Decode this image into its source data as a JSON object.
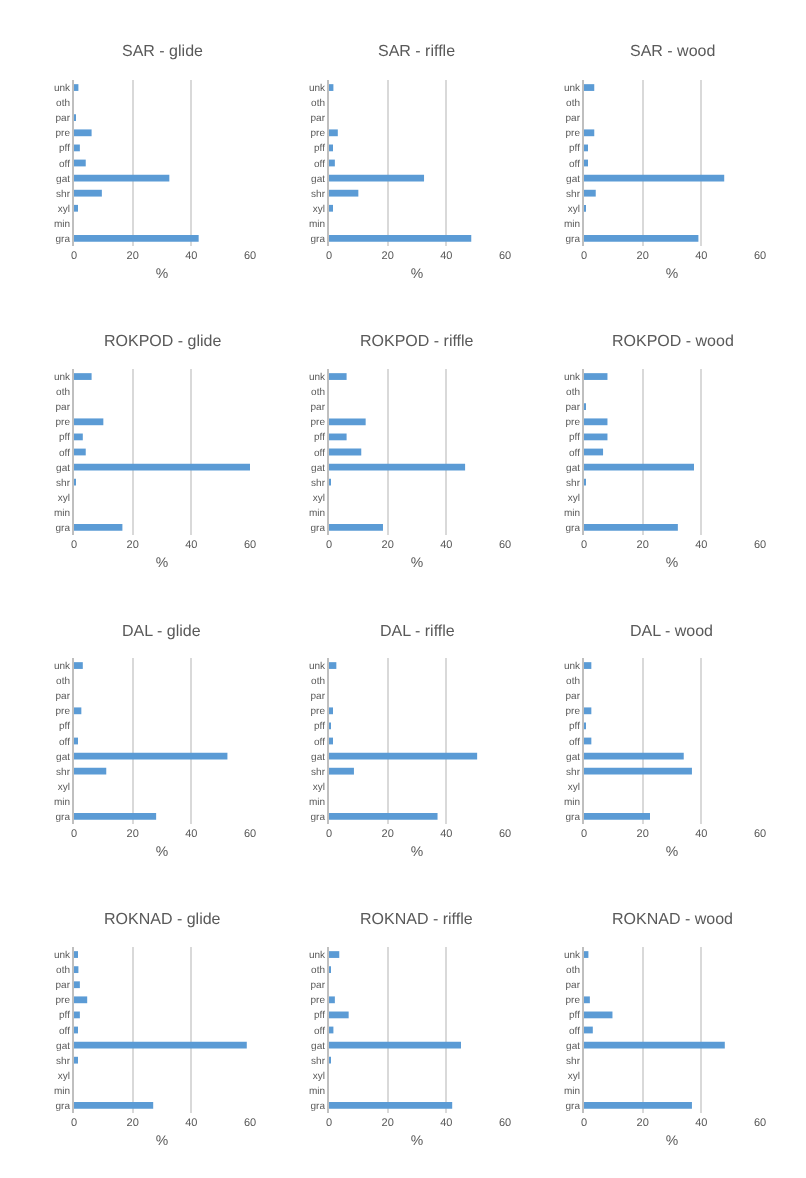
{
  "chart_data": [
    {
      "type": "bar",
      "orientation": "horizontal",
      "title": "SAR - glide",
      "xlabel": "%",
      "categories": [
        "unk",
        "oth",
        "par",
        "pre",
        "pff",
        "off",
        "gat",
        "shr",
        "xyl",
        "min",
        "gra"
      ],
      "values": [
        1.5,
        0,
        0.3,
        6,
        2,
        4,
        32.5,
        9.5,
        1,
        0,
        42.5
      ],
      "color": "#5b9bd5",
      "xlim": [
        0,
        60
      ],
      "xticks": [
        0,
        20,
        40,
        60
      ],
      "grid": "x"
    },
    {
      "type": "bar",
      "orientation": "horizontal",
      "title": "SAR - riffle",
      "xlabel": "%",
      "categories": [
        "unk",
        "oth",
        "par",
        "pre",
        "pff",
        "off",
        "gat",
        "shr",
        "xyl",
        "min",
        "gra"
      ],
      "values": [
        1.5,
        0,
        0,
        3,
        1,
        2,
        32.4,
        10,
        1,
        0,
        48.5
      ],
      "color": "#5b9bd5",
      "xlim": [
        0,
        60
      ],
      "xticks": [
        0,
        20,
        40,
        60
      ],
      "grid": "x"
    },
    {
      "type": "bar",
      "orientation": "horizontal",
      "title": "SAR - wood",
      "xlabel": "%",
      "categories": [
        "unk",
        "oth",
        "par",
        "pre",
        "pff",
        "off",
        "gat",
        "shr",
        "xyl",
        "min",
        "gra"
      ],
      "values": [
        3.5,
        0,
        0,
        3.5,
        1,
        1,
        47.8,
        4,
        0.5,
        0,
        39
      ],
      "color": "#5b9bd5",
      "xlim": [
        0,
        60
      ],
      "xticks": [
        0,
        20,
        40,
        60
      ],
      "grid": "x"
    },
    {
      "type": "bar",
      "orientation": "horizontal",
      "title": "ROKPOD - glide",
      "xlabel": "%",
      "categories": [
        "unk",
        "oth",
        "par",
        "pre",
        "pff",
        "off",
        "gat",
        "shr",
        "xyl",
        "min",
        "gra"
      ],
      "values": [
        6,
        0,
        0,
        10,
        3,
        4,
        60,
        0.3,
        0,
        0,
        16.5
      ],
      "color": "#5b9bd5",
      "xlim": [
        0,
        60
      ],
      "xticks": [
        0,
        20,
        40,
        60
      ],
      "grid": "x"
    },
    {
      "type": "bar",
      "orientation": "horizontal",
      "title": "ROKPOD - riffle",
      "xlabel": "%",
      "categories": [
        "unk",
        "oth",
        "par",
        "pre",
        "pff",
        "off",
        "gat",
        "shr",
        "xyl",
        "min",
        "gra"
      ],
      "values": [
        6,
        0,
        0,
        12.5,
        6,
        11,
        46.4,
        0.5,
        0,
        0,
        18.4
      ],
      "color": "#5b9bd5",
      "xlim": [
        0,
        60
      ],
      "xticks": [
        0,
        20,
        40,
        60
      ],
      "grid": "x"
    },
    {
      "type": "bar",
      "orientation": "horizontal",
      "title": "ROKPOD - wood",
      "xlabel": "%",
      "categories": [
        "unk",
        "oth",
        "par",
        "pre",
        "pff",
        "off",
        "gat",
        "shr",
        "xyl",
        "min",
        "gra"
      ],
      "values": [
        8,
        0,
        0.3,
        8,
        8,
        6.5,
        37.5,
        0.5,
        0,
        0,
        32
      ],
      "color": "#5b9bd5",
      "xlim": [
        0,
        60
      ],
      "xticks": [
        0,
        20,
        40,
        60
      ],
      "grid": "x"
    },
    {
      "type": "bar",
      "orientation": "horizontal",
      "title": "DAL - glide",
      "xlabel": "%",
      "categories": [
        "unk",
        "oth",
        "par",
        "pre",
        "pff",
        "off",
        "gat",
        "shr",
        "xyl",
        "min",
        "gra"
      ],
      "values": [
        3,
        0,
        0,
        2.5,
        0,
        1,
        52.3,
        11,
        0,
        0,
        28
      ],
      "color": "#5b9bd5",
      "xlim": [
        0,
        60
      ],
      "xticks": [
        0,
        20,
        40,
        60
      ],
      "grid": "x"
    },
    {
      "type": "bar",
      "orientation": "horizontal",
      "title": "DAL - riffle",
      "xlabel": "%",
      "categories": [
        "unk",
        "oth",
        "par",
        "pre",
        "pff",
        "off",
        "gat",
        "shr",
        "xyl",
        "min",
        "gra"
      ],
      "values": [
        2.5,
        0,
        0,
        1,
        0.5,
        1,
        50.5,
        8.5,
        0,
        0,
        37
      ],
      "color": "#5b9bd5",
      "xlim": [
        0,
        60
      ],
      "xticks": [
        0,
        20,
        40,
        60
      ],
      "grid": "x"
    },
    {
      "type": "bar",
      "orientation": "horizontal",
      "title": "DAL - wood",
      "xlabel": "%",
      "categories": [
        "unk",
        "oth",
        "par",
        "pre",
        "pff",
        "off",
        "gat",
        "shr",
        "xyl",
        "min",
        "gra"
      ],
      "values": [
        2.5,
        0,
        0,
        2.5,
        0.5,
        2.5,
        34,
        36.8,
        0,
        0,
        22.5
      ],
      "color": "#5b9bd5",
      "xlim": [
        0,
        60
      ],
      "xticks": [
        0,
        20,
        40,
        60
      ],
      "grid": "x"
    },
    {
      "type": "bar",
      "orientation": "horizontal",
      "title": "ROKNAD - glide",
      "xlabel": "%",
      "categories": [
        "unk",
        "oth",
        "par",
        "pre",
        "pff",
        "off",
        "gat",
        "shr",
        "xyl",
        "min",
        "gra"
      ],
      "values": [
        1,
        1.5,
        2,
        4.5,
        2,
        1,
        58.9,
        1,
        0,
        0,
        27
      ],
      "color": "#5b9bd5",
      "xlim": [
        0,
        60
      ],
      "xticks": [
        0,
        20,
        40,
        60
      ],
      "grid": "x"
    },
    {
      "type": "bar",
      "orientation": "horizontal",
      "title": "ROKNAD - riffle",
      "xlabel": "%",
      "categories": [
        "unk",
        "oth",
        "par",
        "pre",
        "pff",
        "off",
        "gat",
        "shr",
        "xyl",
        "min",
        "gra"
      ],
      "values": [
        3.5,
        0.5,
        0,
        2,
        6.7,
        1.5,
        45,
        0.5,
        0,
        0,
        42
      ],
      "color": "#5b9bd5",
      "xlim": [
        0,
        60
      ],
      "xticks": [
        0,
        20,
        40,
        60
      ],
      "grid": "x"
    },
    {
      "type": "bar",
      "orientation": "horizontal",
      "title": "ROKNAD - wood",
      "xlabel": "%",
      "categories": [
        "unk",
        "oth",
        "par",
        "pre",
        "pff",
        "off",
        "gat",
        "shr",
        "xyl",
        "min",
        "gra"
      ],
      "values": [
        1.5,
        0,
        0,
        2,
        9.7,
        3,
        48,
        0,
        0,
        0,
        36.8
      ],
      "color": "#5b9bd5",
      "xlim": [
        0,
        60
      ],
      "xticks": [
        0,
        20,
        40,
        60
      ],
      "grid": "x"
    }
  ]
}
